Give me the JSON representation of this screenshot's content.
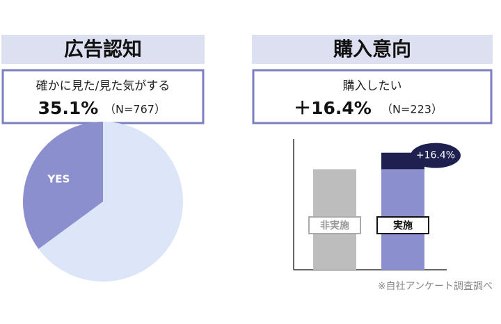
{
  "chart_data": [
    {
      "type": "pie",
      "title": "広告認知",
      "subtitle": "確かに見た/見た気がする",
      "headline": {
        "value": 35.1,
        "label": "35.1%"
      },
      "sample": "（N=767）",
      "categories": [
        "YES",
        null
      ],
      "values": [
        35.1,
        64.9
      ],
      "colors": [
        "#8c8fce",
        "#dde6f8"
      ]
    },
    {
      "type": "bar",
      "title": "購入意向",
      "subtitle": "購入したい",
      "headline": {
        "value": 16.4,
        "label": "＋16.4%"
      },
      "sample": "（N=223）",
      "categories": [
        "非実施",
        "実施"
      ],
      "series": [
        {
          "colors": [
            "#bdbdbd",
            "#8c8fce"
          ],
          "values": [
            100,
            100
          ]
        },
        {
          "color": "#1e2150",
          "values": [
            null,
            16.4
          ],
          "value_labels": [
            null,
            "+16.4%"
          ]
        }
      ],
      "ylim": [
        0,
        130
      ]
    }
  ],
  "footnote": "※自社アンケート調査調べ"
}
